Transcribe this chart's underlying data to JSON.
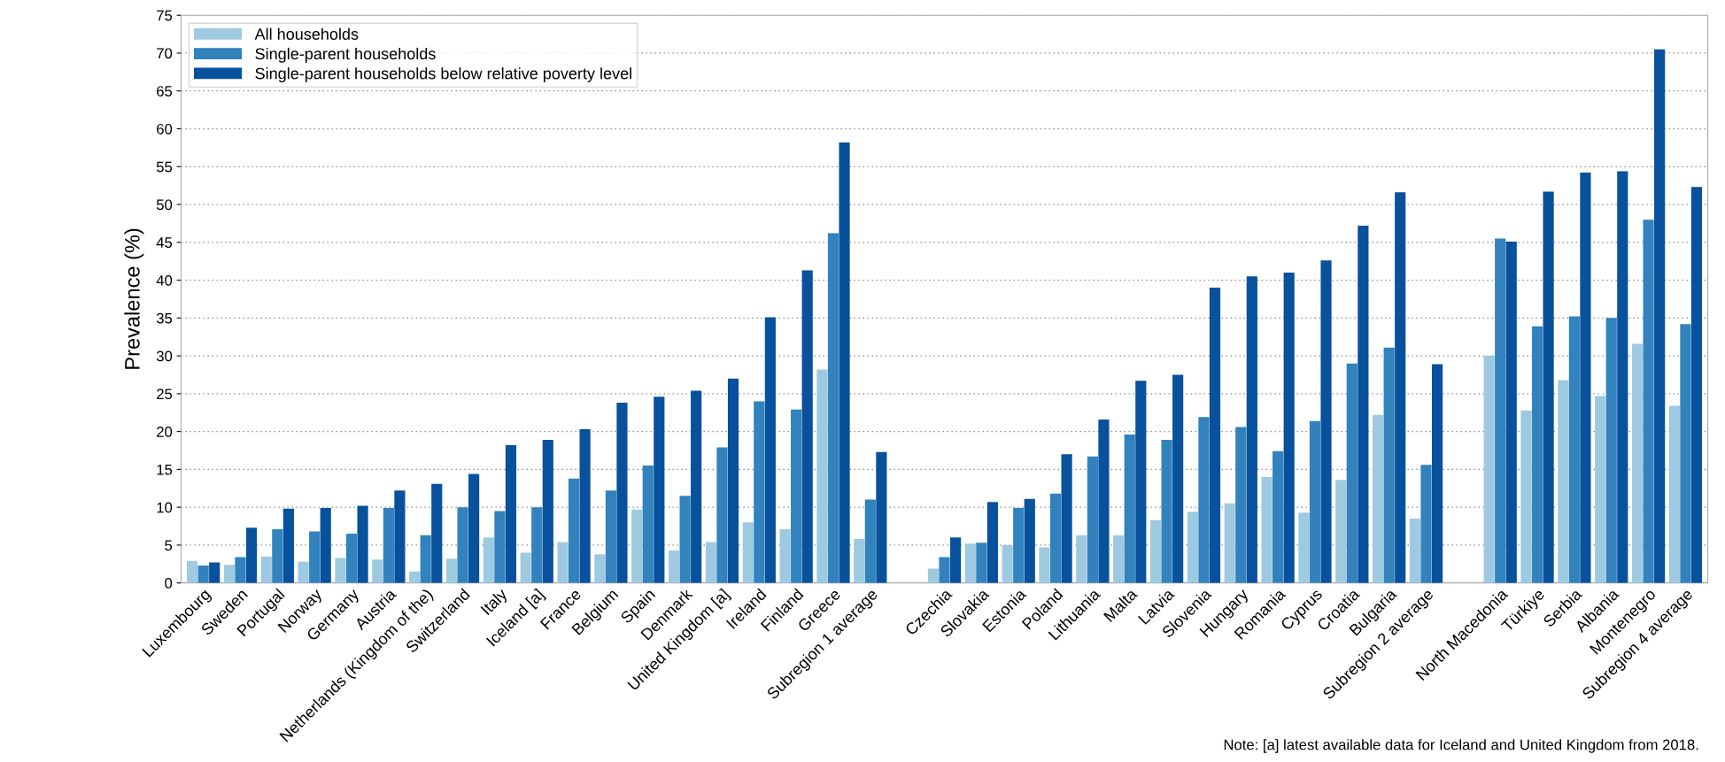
{
  "chart_data": {
    "type": "bar",
    "ylabel": "Prevalence (%)",
    "categories": [
      "Luxembourg",
      "Sweden",
      "Portugal",
      "Norway",
      "Germany",
      "Austria",
      "Netherlands (Kingdom of the)",
      "Switzerland",
      "Italy",
      "Iceland [a]",
      "France",
      "Belgium",
      "Spain",
      "Denmark",
      "United Kingdom [a]",
      "Ireland",
      "Finland",
      "Greece",
      "Subregion 1 average",
      null,
      "Czechia",
      "Slovakia",
      "Estonia",
      "Poland",
      "Lithuania",
      "Malta",
      "Latvia",
      "Slovenia",
      "Hungary",
      "Romania",
      "Cyprus",
      "Croatia",
      "Bulgaria",
      "Subregion 2 average",
      null,
      "North Macedonia",
      "Türkiye",
      "Serbia",
      "Albania",
      "Montenegro",
      "Subregion 4 average"
    ],
    "series": [
      {
        "name": "All households",
        "color": "#9ecae1",
        "values": [
          2.9,
          2.4,
          3.5,
          2.8,
          3.3,
          3.1,
          1.5,
          3.2,
          6.0,
          4.0,
          5.4,
          3.8,
          9.7,
          4.3,
          5.4,
          8.0,
          7.1,
          28.2,
          5.8,
          null,
          1.9,
          5.2,
          5.0,
          4.7,
          6.3,
          6.3,
          8.3,
          9.4,
          10.5,
          14.0,
          9.3,
          13.6,
          22.2,
          8.5,
          null,
          30.0,
          22.8,
          26.8,
          24.7,
          31.6,
          23.4
        ]
      },
      {
        "name": "Single-parent households",
        "color": "#3182bd",
        "values": [
          2.3,
          3.4,
          7.1,
          6.8,
          6.5,
          9.9,
          6.3,
          10.0,
          9.5,
          10.0,
          13.8,
          12.2,
          15.5,
          11.5,
          17.9,
          24.0,
          22.9,
          46.2,
          11.0,
          null,
          3.4,
          5.3,
          9.9,
          11.8,
          16.7,
          19.6,
          18.9,
          21.9,
          20.6,
          17.4,
          21.4,
          29.0,
          31.1,
          15.6,
          null,
          45.5,
          33.9,
          35.2,
          35.0,
          48.0,
          34.2
        ]
      },
      {
        "name": "Single-parent households below relative poverty level",
        "color": "#08519c",
        "values": [
          2.7,
          7.3,
          9.8,
          9.9,
          10.2,
          12.2,
          13.1,
          14.4,
          18.2,
          18.9,
          20.3,
          23.8,
          24.6,
          25.4,
          27.0,
          35.1,
          41.3,
          58.2,
          17.3,
          null,
          6.0,
          10.7,
          11.1,
          17.0,
          21.6,
          26.7,
          27.5,
          39.0,
          40.5,
          41.0,
          42.6,
          47.2,
          51.6,
          28.9,
          null,
          45.1,
          51.7,
          54.2,
          54.4,
          70.5,
          52.3
        ]
      }
    ],
    "ylim": [
      0,
      75
    ],
    "yticks": [
      0,
      5,
      10,
      15,
      20,
      25,
      30,
      35,
      40,
      45,
      50,
      55,
      60,
      65,
      70,
      75
    ],
    "grid": "y",
    "legend": "top left",
    "annotations": [
      "Note: [a] latest available data for Iceland and United Kingdom from 2018."
    ]
  }
}
